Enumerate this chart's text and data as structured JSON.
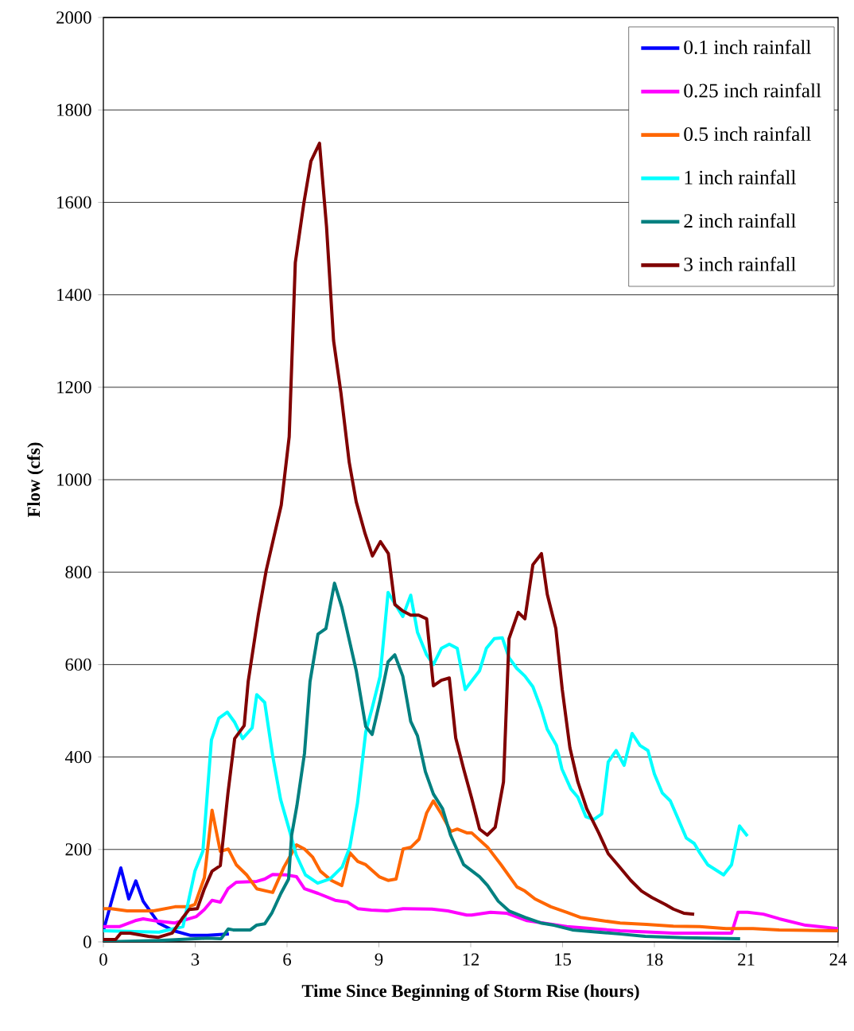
{
  "chart_data": {
    "type": "line",
    "xlabel": "Time Since Beginning of Storm Rise (hours)",
    "ylabel": "Flow (cfs)",
    "xlim": [
      0,
      24
    ],
    "xticks": [
      0,
      3,
      6,
      9,
      12,
      15,
      18,
      21,
      24
    ],
    "ylim": [
      0,
      2000
    ],
    "yticks": [
      0,
      200,
      400,
      600,
      800,
      1000,
      1200,
      1400,
      1600,
      1800,
      2000
    ],
    "grid": "y",
    "legend": "top right",
    "marker": "none",
    "line_style": "solid",
    "series": [
      {
        "name": "0.1 inch rainfall",
        "color": "#0000ff",
        "x": [
          0,
          0.57,
          0.83,
          1.06,
          1.3,
          1.8,
          2.3,
          2.85,
          3.4,
          4.1
        ],
        "values": [
          24,
          160,
          93,
          132,
          88,
          41,
          24,
          14,
          14,
          17
        ]
      },
      {
        "name": "0.25 inch rainfall",
        "color": "#ff00ff",
        "x": [
          0,
          0.52,
          1.04,
          1.3,
          1.74,
          2.34,
          3.04,
          3.3,
          3.55,
          3.82,
          4.07,
          4.34,
          5.01,
          5.27,
          5.53,
          5.97,
          6.31,
          6.57,
          7.01,
          7.57,
          7.97,
          8.31,
          8.75,
          9.27,
          9.79,
          10.73,
          11.25,
          11.87,
          12.03,
          12.65,
          13.17,
          13.84,
          15.14,
          16.88,
          18.62,
          20.52,
          20.73,
          21.04,
          21.56,
          22.08,
          22.94,
          24.0
        ],
        "values": [
          33,
          33,
          46,
          50,
          45,
          41,
          55,
          70,
          90,
          86,
          115,
          129,
          131,
          136,
          146,
          145,
          141,
          115,
          105,
          90,
          86,
          72,
          69,
          67,
          72,
          71,
          67,
          58,
          58,
          64,
          62,
          46,
          33,
          24,
          19,
          19,
          64,
          64,
          60,
          50,
          36,
          29
        ]
      },
      {
        "name": "0.5 inch rainfall",
        "color": "#ff6600",
        "x": [
          0,
          0.26,
          0.78,
          1.64,
          2.34,
          2.78,
          2.99,
          3.3,
          3.55,
          3.82,
          4.08,
          4.34,
          4.68,
          5.01,
          5.53,
          5.9,
          6.31,
          6.57,
          6.83,
          7.09,
          7.45,
          7.79,
          8.05,
          8.31,
          8.57,
          9.01,
          9.3,
          9.56,
          9.79,
          10.05,
          10.31,
          10.56,
          10.78,
          11.04,
          11.35,
          11.56,
          11.87,
          12.03,
          12.55,
          12.99,
          13.51,
          13.77,
          14.1,
          14.62,
          15.14,
          15.58,
          16.29,
          16.88,
          17.74,
          18.62,
          19.48,
          20.34,
          21.22,
          22.08,
          24.0
        ],
        "values": [
          72,
          72,
          67,
          67,
          76,
          76,
          81,
          139,
          285,
          196,
          201,
          167,
          145,
          115,
          107,
          162,
          210,
          201,
          184,
          153,
          133,
          122,
          193,
          174,
          167,
          141,
          133,
          136,
          201,
          205,
          222,
          279,
          305,
          277,
          239,
          244,
          236,
          236,
          205,
          167,
          119,
          110,
          93,
          76,
          64,
          53,
          46,
          41,
          38,
          34,
          33,
          29,
          29,
          26,
          24
        ]
      },
      {
        "name": "1 inch rainfall",
        "color": "#00ffff",
        "x": [
          0,
          1.82,
          2.6,
          2.99,
          3.25,
          3.53,
          3.77,
          4.05,
          4.29,
          4.55,
          4.86,
          5.01,
          5.27,
          5.53,
          5.79,
          6.05,
          6.3,
          6.6,
          7.0,
          7.4,
          7.8,
          8.05,
          8.3,
          8.57,
          8.78,
          9.04,
          9.3,
          9.78,
          10.04,
          10.26,
          10.56,
          10.78,
          11.04,
          11.3,
          11.56,
          11.82,
          12.29,
          12.51,
          12.77,
          13.03,
          13.25,
          13.5,
          13.77,
          14.03,
          14.29,
          14.5,
          14.8,
          14.98,
          15.27,
          15.5,
          15.76,
          16.02,
          16.28,
          16.49,
          16.75,
          17.01,
          17.27,
          17.53,
          17.79,
          18.0,
          18.26,
          18.52,
          18.75,
          19.04,
          19.3,
          19.48,
          19.74,
          20.26,
          20.52,
          20.78,
          21.04
        ],
        "values": [
          24,
          21,
          33,
          153,
          196,
          437,
          484,
          497,
          475,
          440,
          463,
          535,
          518,
          403,
          308,
          248,
          188,
          145,
          127,
          136,
          162,
          205,
          300,
          454,
          506,
          575,
          756,
          704,
          750,
          670,
          621,
          600,
          635,
          644,
          635,
          546,
          587,
          635,
          656,
          658,
          615,
          592,
          575,
          552,
          506,
          460,
          425,
          374,
          331,
          313,
          271,
          265,
          277,
          389,
          414,
          382,
          451,
          425,
          414,
          363,
          322,
          305,
          270,
          225,
          213,
          193,
          167,
          145,
          167,
          251,
          229
        ]
      },
      {
        "name": "2 inch rainfall",
        "color": "#008080",
        "x": [
          0,
          1.8,
          3.4,
          3.85,
          4.08,
          4.24,
          4.8,
          5.0,
          5.27,
          5.5,
          5.8,
          6.05,
          6.15,
          6.32,
          6.57,
          6.75,
          7.01,
          7.27,
          7.55,
          7.79,
          8.26,
          8.57,
          8.78,
          9.04,
          9.3,
          9.52,
          9.78,
          10.04,
          10.26,
          10.52,
          10.78,
          11.08,
          11.34,
          11.77,
          11.95,
          12.29,
          12.55,
          12.9,
          13.25,
          13.77,
          14.29,
          14.72,
          15.32,
          16.0,
          16.9,
          17.7,
          19.0,
          20.8
        ],
        "values": [
          0,
          3,
          8,
          7,
          28,
          26,
          26,
          36,
          39,
          62,
          105,
          136,
          231,
          294,
          408,
          563,
          666,
          678,
          776,
          724,
          587,
          466,
          449,
          523,
          606,
          621,
          575,
          477,
          446,
          368,
          320,
          288,
          231,
          167,
          158,
          141,
          122,
          88,
          67,
          53,
          41,
          36,
          26,
          22,
          17,
          12,
          9,
          7
        ]
      },
      {
        "name": "3 inch rainfall",
        "color": "#800000",
        "x": [
          0,
          0.4,
          0.57,
          0.87,
          1.47,
          1.8,
          2.25,
          2.6,
          2.8,
          3.07,
          3.3,
          3.55,
          3.82,
          4.07,
          4.29,
          4.6,
          4.73,
          5.06,
          5.32,
          5.81,
          6.07,
          6.27,
          6.55,
          6.78,
          7.06,
          7.29,
          7.52,
          7.76,
          8.03,
          8.26,
          8.55,
          8.79,
          9.05,
          9.31,
          9.52,
          9.78,
          10.04,
          10.3,
          10.56,
          10.78,
          11.04,
          11.3,
          11.51,
          11.77,
          12.03,
          12.29,
          12.54,
          12.8,
          13.07,
          13.25,
          13.55,
          13.77,
          14.03,
          14.31,
          14.5,
          14.78,
          14.99,
          15.24,
          15.5,
          15.79,
          16.18,
          16.49,
          16.8,
          17.23,
          17.58,
          17.92,
          18.36,
          18.62,
          18.96,
          19.3
        ],
        "values": [
          5,
          5,
          19,
          19,
          12,
          10,
          19,
          53,
          70,
          72,
          115,
          153,
          165,
          322,
          440,
          468,
          563,
          707,
          804,
          945,
          1093,
          1470,
          1599,
          1689,
          1728,
          1547,
          1301,
          1188,
          1038,
          952,
          883,
          835,
          866,
          840,
          730,
          716,
          707,
          707,
          699,
          554,
          566,
          571,
          441,
          374,
          311,
          244,
          231,
          248,
          346,
          656,
          713,
          699,
          816,
          840,
          752,
          678,
          546,
          420,
          346,
          288,
          236,
          191,
          167,
          133,
          110,
          96,
          81,
          71,
          62,
          60
        ]
      }
    ]
  }
}
